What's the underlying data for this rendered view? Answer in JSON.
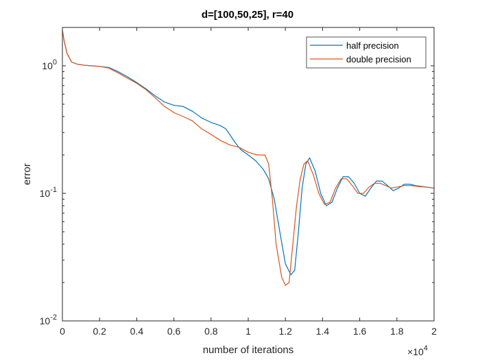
{
  "chart_data": {
    "type": "line",
    "title": "d=[100,50,25], r=40",
    "xlabel": "number of iterations",
    "ylabel": "error",
    "x_exponent_label": "×10",
    "x_exponent_power": "4",
    "x_scale_factor": 10000,
    "xlim": [
      0,
      20000
    ],
    "ylim": [
      0.01,
      2
    ],
    "yscale": "log",
    "grid": false,
    "legend_position": "top-right",
    "x_ticks": [
      0,
      2000,
      4000,
      6000,
      8000,
      10000,
      12000,
      14000,
      16000,
      18000,
      20000
    ],
    "x_tick_labels": [
      "0",
      "0.2",
      "0.4",
      "0.6",
      "0.8",
      "1",
      "1.2",
      "1.4",
      "1.6",
      "1.8",
      "2"
    ],
    "y_ticks": [
      0.01,
      0.1,
      1
    ],
    "y_tick_bases": [
      "10",
      "10",
      "10"
    ],
    "y_tick_exponents": [
      "-2",
      "-1",
      "0"
    ],
    "series": [
      {
        "name": "half precision",
        "color": "#0072BD",
        "points": [
          [
            0,
            1.9
          ],
          [
            100,
            1.55
          ],
          [
            250,
            1.25
          ],
          [
            500,
            1.07
          ],
          [
            800,
            1.03
          ],
          [
            1200,
            1.01
          ],
          [
            1600,
            1.0
          ],
          [
            2000,
            0.99
          ],
          [
            2500,
            0.97
          ],
          [
            3000,
            0.9
          ],
          [
            3500,
            0.82
          ],
          [
            4000,
            0.74
          ],
          [
            4500,
            0.66
          ],
          [
            5000,
            0.58
          ],
          [
            5500,
            0.52
          ],
          [
            6000,
            0.49
          ],
          [
            6500,
            0.48
          ],
          [
            7000,
            0.44
          ],
          [
            7500,
            0.39
          ],
          [
            8000,
            0.36
          ],
          [
            8500,
            0.34
          ],
          [
            8800,
            0.32
          ],
          [
            9000,
            0.29
          ],
          [
            9300,
            0.25
          ],
          [
            9600,
            0.22
          ],
          [
            10000,
            0.2
          ],
          [
            10400,
            0.18
          ],
          [
            10800,
            0.155
          ],
          [
            11100,
            0.13
          ],
          [
            11400,
            0.09
          ],
          [
            11700,
            0.05
          ],
          [
            12000,
            0.028
          ],
          [
            12300,
            0.023
          ],
          [
            12500,
            0.025
          ],
          [
            12700,
            0.05
          ],
          [
            12900,
            0.11
          ],
          [
            13100,
            0.17
          ],
          [
            13300,
            0.19
          ],
          [
            13600,
            0.15
          ],
          [
            13900,
            0.1
          ],
          [
            14200,
            0.08
          ],
          [
            14500,
            0.085
          ],
          [
            14800,
            0.11
          ],
          [
            15100,
            0.135
          ],
          [
            15400,
            0.135
          ],
          [
            15700,
            0.12
          ],
          [
            16000,
            0.1
          ],
          [
            16300,
            0.095
          ],
          [
            16600,
            0.11
          ],
          [
            16900,
            0.125
          ],
          [
            17200,
            0.125
          ],
          [
            17500,
            0.115
          ],
          [
            17800,
            0.105
          ],
          [
            18100,
            0.11
          ],
          [
            18400,
            0.118
          ],
          [
            18700,
            0.118
          ],
          [
            19000,
            0.115
          ],
          [
            19400,
            0.113
          ],
          [
            20000,
            0.11
          ]
        ]
      },
      {
        "name": "double precision",
        "color": "#D95319",
        "points": [
          [
            0,
            1.9
          ],
          [
            100,
            1.55
          ],
          [
            250,
            1.25
          ],
          [
            500,
            1.07
          ],
          [
            800,
            1.03
          ],
          [
            1200,
            1.01
          ],
          [
            1600,
            1.0
          ],
          [
            2000,
            0.99
          ],
          [
            2500,
            0.96
          ],
          [
            3000,
            0.88
          ],
          [
            3500,
            0.8
          ],
          [
            4000,
            0.73
          ],
          [
            4500,
            0.65
          ],
          [
            5000,
            0.56
          ],
          [
            5500,
            0.48
          ],
          [
            6000,
            0.43
          ],
          [
            6500,
            0.4
          ],
          [
            7000,
            0.37
          ],
          [
            7500,
            0.32
          ],
          [
            8000,
            0.29
          ],
          [
            8500,
            0.26
          ],
          [
            9000,
            0.24
          ],
          [
            9500,
            0.23
          ],
          [
            10000,
            0.21
          ],
          [
            10500,
            0.2
          ],
          [
            10900,
            0.2
          ],
          [
            11100,
            0.17
          ],
          [
            11300,
            0.09
          ],
          [
            11500,
            0.04
          ],
          [
            11800,
            0.022
          ],
          [
            12000,
            0.019
          ],
          [
            12200,
            0.02
          ],
          [
            12400,
            0.04
          ],
          [
            12600,
            0.08
          ],
          [
            12800,
            0.13
          ],
          [
            13000,
            0.17
          ],
          [
            13200,
            0.18
          ],
          [
            13500,
            0.14
          ],
          [
            13800,
            0.1
          ],
          [
            14100,
            0.082
          ],
          [
            14400,
            0.085
          ],
          [
            14700,
            0.11
          ],
          [
            15000,
            0.13
          ],
          [
            15300,
            0.13
          ],
          [
            15600,
            0.115
          ],
          [
            15900,
            0.1
          ],
          [
            16200,
            0.1
          ],
          [
            16500,
            0.112
          ],
          [
            16800,
            0.12
          ],
          [
            17100,
            0.12
          ],
          [
            17400,
            0.115
          ],
          [
            17700,
            0.11
          ],
          [
            18000,
            0.112
          ],
          [
            18400,
            0.115
          ],
          [
            18800,
            0.115
          ],
          [
            19200,
            0.113
          ],
          [
            19600,
            0.112
          ],
          [
            20000,
            0.11
          ]
        ]
      }
    ]
  }
}
